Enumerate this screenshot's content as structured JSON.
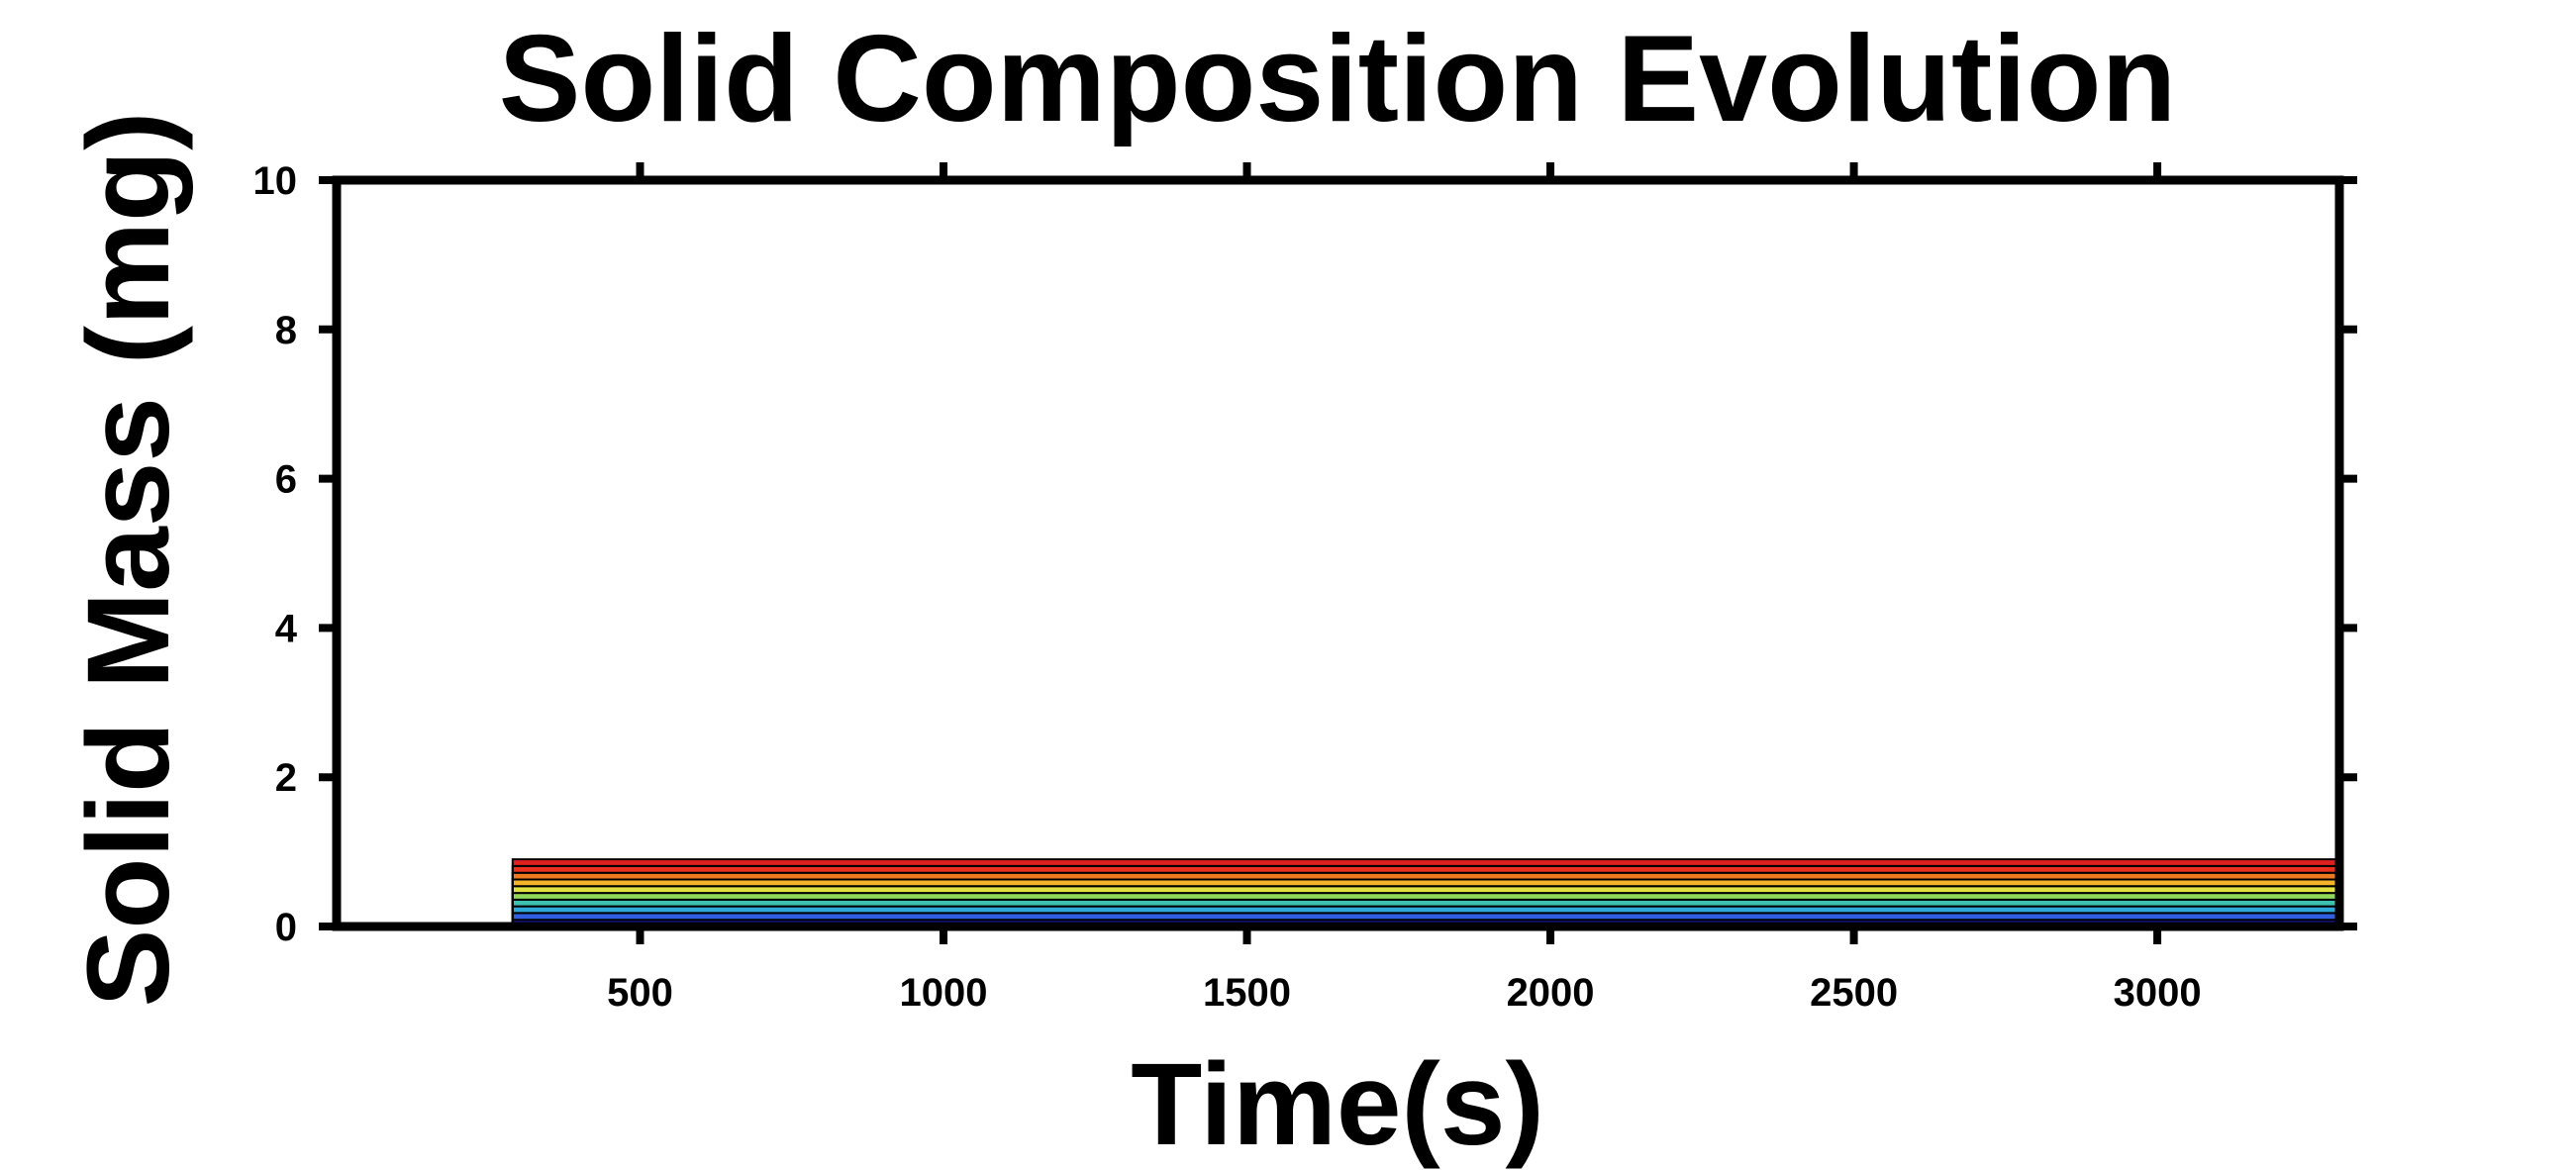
{
  "chart_data": {
    "type": "area",
    "title": "Solid Composition Evolution",
    "xlabel": "Time(s)",
    "ylabel": "Solid Mass (mg)",
    "xlim": [
      0,
      3300
    ],
    "ylim": [
      0,
      10
    ],
    "x_ticks": [
      500,
      1000,
      1500,
      2000,
      2500,
      3000
    ],
    "x_tick_labels": [
      "500",
      "1000",
      "1500",
      "2000",
      "2500",
      "3000"
    ],
    "y_ticks": [
      0,
      2,
      4,
      6,
      8,
      10
    ],
    "y_tick_labels": [
      "0",
      "2",
      "4",
      "6",
      "8",
      "10"
    ],
    "x": [
      0,
      290,
      290,
      3300
    ],
    "stacked": true,
    "series": [
      {
        "color": "#1a1aa8",
        "values": [
          0,
          0,
          0.09,
          0.09
        ]
      },
      {
        "color": "#2f5fe0",
        "values": [
          0,
          0,
          0.09,
          0.09
        ]
      },
      {
        "color": "#2fa6d8",
        "values": [
          0,
          0,
          0.09,
          0.09
        ]
      },
      {
        "color": "#3ec1b0",
        "values": [
          0,
          0,
          0.09,
          0.09
        ]
      },
      {
        "color": "#8fd85a",
        "values": [
          0,
          0,
          0.09,
          0.09
        ]
      },
      {
        "color": "#e0e040",
        "values": [
          0,
          0,
          0.09,
          0.09
        ]
      },
      {
        "color": "#f3b42a",
        "values": [
          0,
          0,
          0.09,
          0.09
        ]
      },
      {
        "color": "#ef7a1e",
        "values": [
          0,
          0,
          0.09,
          0.09
        ]
      },
      {
        "color": "#e8301c",
        "values": [
          0,
          0,
          0.09,
          0.09
        ]
      },
      {
        "color": "#e01f1f",
        "values": [
          0,
          0,
          0.09,
          0.09
        ]
      }
    ],
    "grid": false,
    "legend": "none"
  }
}
